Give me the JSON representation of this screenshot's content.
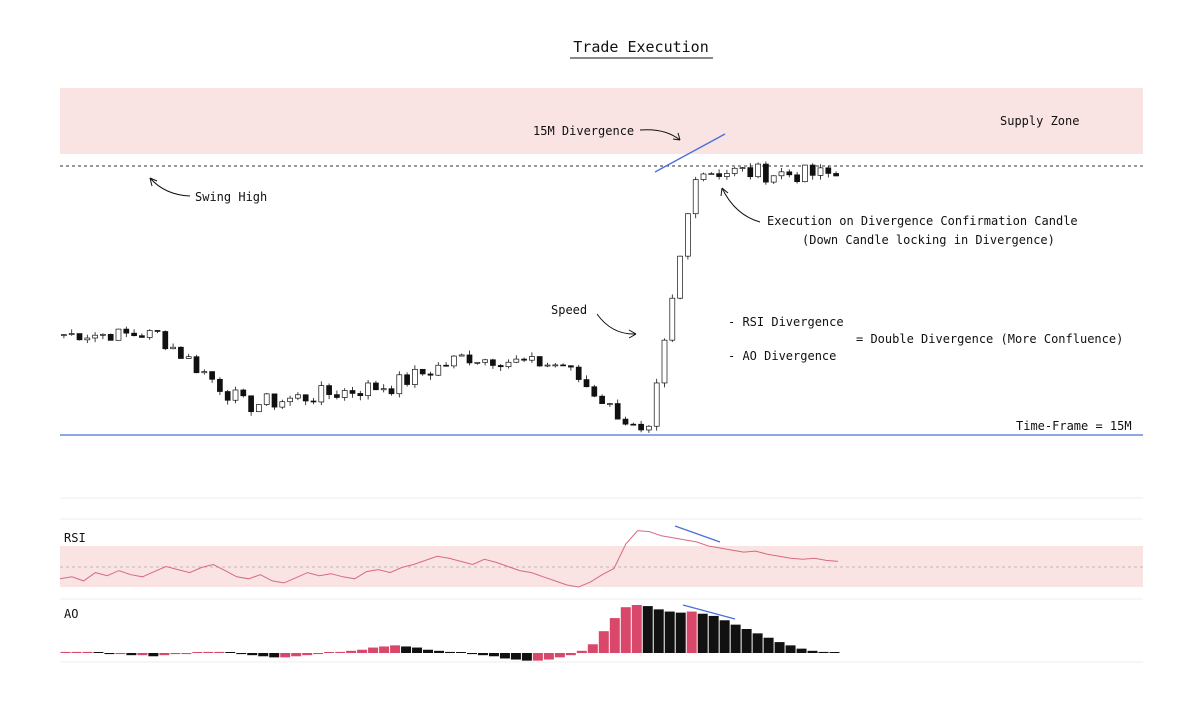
{
  "title": "Trade Execution",
  "colors": {
    "supply_zone": "#f9e3e3",
    "swing_line": "#333333",
    "support_line": "#4a6fd8",
    "divergence_line": "#4a6fd8",
    "rsi_band": "#f9e3e3",
    "rsi_line": "#d86a82",
    "ao_up": "#d9486a",
    "ao_down": "#111111"
  },
  "annotations": {
    "supply_zone": "Supply Zone",
    "swing_high": "Swing High",
    "divergence_15m": "15M Divergence",
    "execution_line1": "Execution on Divergence Confirmation Candle",
    "execution_line2": "(Down Candle locking in Divergence)",
    "speed": "Speed",
    "rsi_divergence": "- RSI Divergence",
    "ao_divergence": "- AO Divergence",
    "double_divergence": "= Double Divergence (More Confluence)",
    "timeframe": "Time-Frame = 15M"
  },
  "panels": {
    "rsi_label": "RSI",
    "ao_label": "AO"
  },
  "chart_data": [
    {
      "type": "candlestick",
      "title": "Trade Execution",
      "timeframe": "15M",
      "series": [
        {
          "shape": "consolidation",
          "from": 0,
          "to": 12,
          "start": 0.7,
          "end": 0.7,
          "noise": 0.03
        },
        {
          "shape": "decline",
          "from": 12,
          "to": 24,
          "start": 0.7,
          "end": 0.4,
          "noise": 0.04
        },
        {
          "shape": "range_low",
          "from": 24,
          "to": 42,
          "start": 0.4,
          "end": 0.48,
          "noise": 0.04
        },
        {
          "shape": "rally",
          "from": 42,
          "to": 52,
          "start": 0.48,
          "end": 0.6,
          "noise": 0.04
        },
        {
          "shape": "range",
          "from": 52,
          "to": 64,
          "start": 0.6,
          "end": 0.57,
          "noise": 0.03
        },
        {
          "shape": "sell_off",
          "from": 64,
          "to": 75,
          "start": 0.57,
          "end": 0.27,
          "noise": 0.03
        },
        {
          "shape": "impulse",
          "from": 75,
          "to": 82,
          "start": 0.27,
          "end": 1.4,
          "noise": 0.04
        },
        {
          "shape": "top_range",
          "from": 82,
          "to": 100,
          "start": 1.4,
          "end": 1.38,
          "noise": 0.04
        }
      ],
      "levels": {
        "swing_high": 1.42,
        "support": 0.27,
        "supply_zone": [
          1.48,
          1.7
        ]
      }
    },
    {
      "type": "line",
      "name": "RSI",
      "values": [
        38,
        40,
        36,
        44,
        41,
        46,
        42,
        40,
        45,
        50,
        47,
        44,
        49,
        52,
        46,
        40,
        38,
        42,
        36,
        34,
        39,
        44,
        41,
        43,
        40,
        38,
        45,
        47,
        44,
        49,
        52,
        56,
        60,
        58,
        55,
        52,
        57,
        54,
        50,
        46,
        44,
        40,
        36,
        32,
        30,
        35,
        42,
        48,
        72,
        85,
        84,
        80,
        78,
        76,
        74,
        70,
        68,
        66,
        64,
        65,
        62,
        60,
        58,
        57,
        58,
        56,
        55
      ],
      "band": [
        30,
        70
      ]
    },
    {
      "type": "bar",
      "name": "AO",
      "values": [
        1,
        1,
        1,
        0,
        -1,
        -1,
        -2,
        -2,
        -3,
        -2,
        -1,
        -1,
        0,
        1,
        1,
        0,
        -1,
        -2,
        -3,
        -4,
        -4,
        -3,
        -2,
        -1,
        0,
        1,
        2,
        3,
        5,
        6,
        7,
        6,
        5,
        3,
        2,
        1,
        0,
        -1,
        -2,
        -3,
        -5,
        -6,
        -7,
        -7,
        -6,
        -4,
        -2,
        2,
        8,
        20,
        32,
        42,
        44,
        43,
        40,
        38,
        37,
        38,
        36,
        34,
        30,
        26,
        22,
        18,
        14,
        10,
        7,
        4,
        2,
        1,
        0
      ]
    }
  ]
}
